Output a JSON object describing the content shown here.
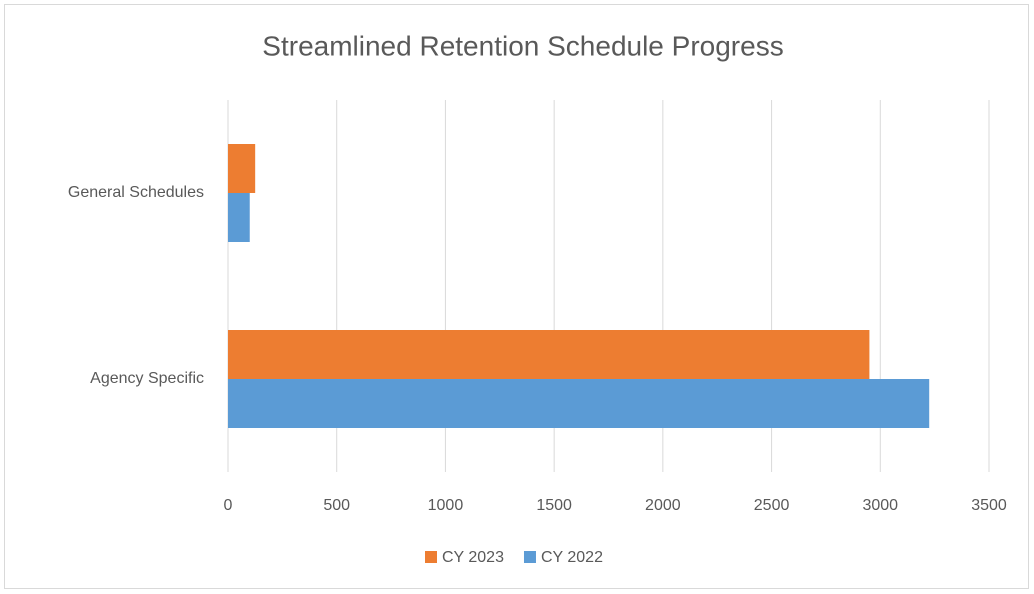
{
  "chart_data": {
    "type": "bar",
    "orientation": "horizontal",
    "title": "Streamlined Retention Schedule Progress",
    "categories": [
      "Agency Specific",
      "General Schedules"
    ],
    "series": [
      {
        "name": "CY 2023",
        "color": "#ed7d31",
        "values": [
          2950,
          125
        ]
      },
      {
        "name": "CY 2022",
        "color": "#5b9bd5",
        "values": [
          3225,
          100
        ]
      }
    ],
    "xlim": [
      0,
      3500
    ],
    "xticks": [
      0,
      500,
      1000,
      1500,
      2000,
      2500,
      3000,
      3500
    ],
    "grid": true,
    "legend": "bottom"
  }
}
